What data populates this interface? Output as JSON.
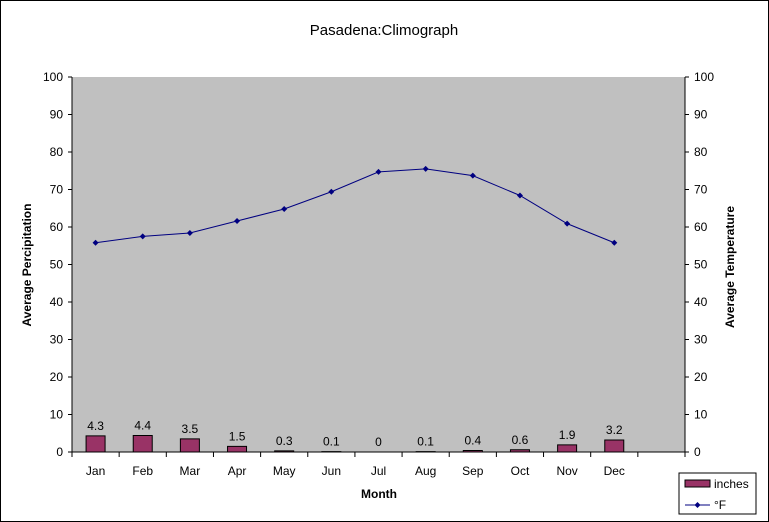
{
  "chart_data": {
    "type": "bar",
    "title": "Pasadena:Climograph",
    "xlabel": "Month",
    "ylabel": "Average Percipitation",
    "y2label": "Average Temperature",
    "categories": [
      "Jan",
      "Feb",
      "Mar",
      "Apr",
      "May",
      "Jun",
      "Jul",
      "Aug",
      "Sep",
      "Oct",
      "Nov",
      "Dec"
    ],
    "ylim": [
      0,
      100
    ],
    "y2lim": [
      0,
      100
    ],
    "yticks": [
      0,
      10,
      20,
      30,
      40,
      50,
      60,
      70,
      80,
      90,
      100
    ],
    "grid": false,
    "legend_position": "bottom-right",
    "series": [
      {
        "name": "inches",
        "type": "bar",
        "axis": "left",
        "color": "#993366",
        "values": [
          4.3,
          4.4,
          3.5,
          1.5,
          0.3,
          0.1,
          0,
          0.1,
          0.4,
          0.6,
          1.9,
          3.2
        ],
        "data_labels": [
          "4.3",
          "4.4",
          "3.5",
          "1.5",
          "0.3",
          "0.1",
          "0",
          "0.1",
          "0.4",
          "0.6",
          "1.9",
          "3.2"
        ]
      },
      {
        "name": "°F",
        "type": "line",
        "axis": "right",
        "color": "#000080",
        "marker": "diamond",
        "values": [
          55.8,
          57.5,
          58.4,
          61.6,
          64.8,
          69.4,
          74.7,
          75.5,
          73.7,
          68.4,
          60.9,
          55.8
        ]
      }
    ],
    "plot_background": "#c0c0c0"
  }
}
